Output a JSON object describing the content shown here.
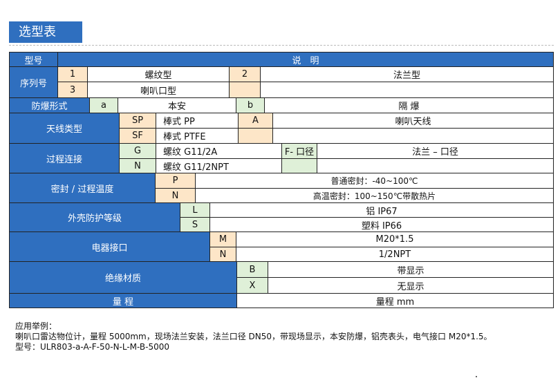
{
  "title": "选型表",
  "header": {
    "model_label": "型号",
    "description_label": "说　明"
  },
  "serial": {
    "label": "序列号",
    "items": [
      {
        "code": "1",
        "desc": "螺纹型"
      },
      {
        "code": "2",
        "desc": "法兰型"
      },
      {
        "code": "3",
        "desc": "喇叭口型"
      }
    ]
  },
  "explosion": {
    "label": "防爆形式",
    "items": [
      {
        "code": "a",
        "desc": "本安"
      },
      {
        "code": "b",
        "desc": "隔 爆"
      }
    ]
  },
  "antenna": {
    "label": "天线类型",
    "items": [
      {
        "code": "SP",
        "desc": "棒式 PP"
      },
      {
        "code": "A",
        "desc": "喇叭天线"
      },
      {
        "code": "SF",
        "desc": "棒式 PTFE"
      }
    ]
  },
  "process": {
    "label": "过程连接",
    "items": [
      {
        "code": "G",
        "desc": "螺纹 G11/2A"
      },
      {
        "code": "F- 口径",
        "desc": "法兰 – 口径"
      },
      {
        "code": "N",
        "desc": "螺纹 G11/2NPT"
      }
    ]
  },
  "seal": {
    "label": "密封 / 过程温度",
    "items": [
      {
        "code": "P",
        "desc": "普通密封：-40~100℃"
      },
      {
        "code": "N",
        "desc": "高温密封：100~150℃带散热片"
      }
    ]
  },
  "housing": {
    "label": "外壳防护等级",
    "items": [
      {
        "code": "L",
        "desc": "铝 IP67"
      },
      {
        "code": "S",
        "desc": "塑料 IP66"
      }
    ]
  },
  "electrical": {
    "label": "电器接口",
    "items": [
      {
        "code": "M",
        "desc": "M20*1.5"
      },
      {
        "code": "N",
        "desc": "1/2NPT"
      }
    ]
  },
  "material": {
    "label": "绝缘材质",
    "items": [
      {
        "code": "B",
        "desc": "带显示"
      },
      {
        "code": "X",
        "desc": "无显示"
      }
    ]
  },
  "range": {
    "label": "量 程",
    "desc": "量程 mm"
  },
  "notes": {
    "heading": "应用举例：",
    "example": "喇叭口雷达物位计，量程 5000mm，现场法兰安装，法兰口径 DN50，带现场显示，本安防爆，铝壳表头，电气接口 M20*1.5。",
    "model_line": "型号：ULR803-a-A-F-50-N-L-M-B-5000"
  },
  "colors": {
    "header_blue": "#2f6fbf",
    "code_orange": "#fde6c8",
    "code_green": "#dff0d8"
  }
}
